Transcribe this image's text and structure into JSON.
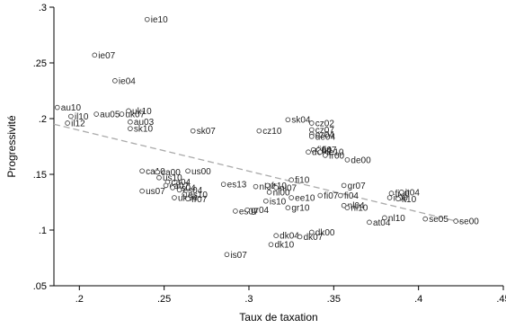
{
  "chart_data": {
    "type": "scatter",
    "title": "",
    "xlabel": "Taux de taxation",
    "ylabel": "Progressivité",
    "xlim": [
      0.185,
      0.45
    ],
    "ylim": [
      0.05,
      0.3
    ],
    "xticks": [
      0.2,
      0.25,
      0.3,
      0.35,
      0.4,
      0.45
    ],
    "xtick_labels": [
      ".2",
      ".25",
      ".3",
      ".35",
      ".4",
      ".45"
    ],
    "yticks": [
      0.05,
      0.1,
      0.15,
      0.2,
      0.25,
      0.3
    ],
    "ytick_labels": [
      ".05",
      ".1",
      ".15",
      ".2",
      ".25",
      ".3"
    ],
    "grid": false,
    "legend": "none",
    "fit_line": {
      "style": "dashed",
      "color": "#aaaaaa",
      "x": [
        0.185,
        0.425
      ],
      "y": [
        0.195,
        0.107
      ]
    },
    "points": [
      {
        "label": "ie10",
        "x": 0.24,
        "y": 0.289
      },
      {
        "label": "ie07",
        "x": 0.209,
        "y": 0.257
      },
      {
        "label": "ie04",
        "x": 0.221,
        "y": 0.234
      },
      {
        "label": "au10",
        "x": 0.187,
        "y": 0.21
      },
      {
        "label": "il10",
        "x": 0.195,
        "y": 0.202
      },
      {
        "label": "il12",
        "x": 0.193,
        "y": 0.196
      },
      {
        "label": "au05",
        "x": 0.21,
        "y": 0.204
      },
      {
        "label": "uk10",
        "x": 0.229,
        "y": 0.207
      },
      {
        "label": "uk07",
        "x": 0.225,
        "y": 0.204
      },
      {
        "label": "au03",
        "x": 0.23,
        "y": 0.197
      },
      {
        "label": "sk10",
        "x": 0.23,
        "y": 0.191
      },
      {
        "label": "sk07",
        "x": 0.267,
        "y": 0.189
      },
      {
        "label": "sk04",
        "x": 0.323,
        "y": 0.199
      },
      {
        "label": "cz02",
        "x": 0.337,
        "y": 0.196
      },
      {
        "label": "cz10",
        "x": 0.306,
        "y": 0.189
      },
      {
        "label": "cz07",
        "x": 0.337,
        "y": 0.19
      },
      {
        "label": "cz04",
        "x": 0.337,
        "y": 0.186
      },
      {
        "label": "de04",
        "x": 0.337,
        "y": 0.184
      },
      {
        "label": "fi04",
        "x": 0.338,
        "y": 0.172
      },
      {
        "label": "fi07",
        "x": 0.341,
        "y": 0.172
      },
      {
        "label": "de07",
        "x": 0.335,
        "y": 0.17
      },
      {
        "label": "de10",
        "x": 0.342,
        "y": 0.17
      },
      {
        "label": "fr00",
        "x": 0.345,
        "y": 0.167
      },
      {
        "label": "de00",
        "x": 0.358,
        "y": 0.163
      },
      {
        "label": "ca10",
        "x": 0.237,
        "y": 0.153
      },
      {
        "label": "ca00",
        "x": 0.246,
        "y": 0.152
      },
      {
        "label": "us00",
        "x": 0.264,
        "y": 0.153
      },
      {
        "label": "us10",
        "x": 0.247,
        "y": 0.147
      },
      {
        "label": "ca04",
        "x": 0.252,
        "y": 0.143
      },
      {
        "label": "ca07",
        "x": 0.251,
        "y": 0.14
      },
      {
        "label": "us04",
        "x": 0.255,
        "y": 0.138
      },
      {
        "label": "es13",
        "x": 0.285,
        "y": 0.141
      },
      {
        "label": "us07",
        "x": 0.237,
        "y": 0.135
      },
      {
        "label": "es04",
        "x": 0.259,
        "y": 0.136
      },
      {
        "label": "es10",
        "x": 0.262,
        "y": 0.132
      },
      {
        "label": "uk04",
        "x": 0.256,
        "y": 0.129
      },
      {
        "label": "fr07",
        "x": 0.264,
        "y": 0.128
      },
      {
        "label": "fi10",
        "x": 0.325,
        "y": 0.145
      },
      {
        "label": "nl04",
        "x": 0.304,
        "y": 0.139
      },
      {
        "label": "fr10",
        "x": 0.311,
        "y": 0.14
      },
      {
        "label": "nl07",
        "x": 0.316,
        "y": 0.138
      },
      {
        "label": "nl00",
        "x": 0.312,
        "y": 0.134
      },
      {
        "label": "gr07",
        "x": 0.356,
        "y": 0.14
      },
      {
        "label": "fi07",
        "x": 0.342,
        "y": 0.131
      },
      {
        "label": "fi04",
        "x": 0.354,
        "y": 0.131
      },
      {
        "label": "ee10",
        "x": 0.325,
        "y": 0.129
      },
      {
        "label": "is10",
        "x": 0.31,
        "y": 0.126
      },
      {
        "label": "gr10",
        "x": 0.323,
        "y": 0.12
      },
      {
        "label": "es07",
        "x": 0.292,
        "y": 0.117
      },
      {
        "label": "gr04",
        "x": 0.299,
        "y": 0.118
      },
      {
        "label": "nl04",
        "x": 0.356,
        "y": 0.122
      },
      {
        "label": "nl10",
        "x": 0.358,
        "y": 0.12
      },
      {
        "label": "fi00",
        "x": 0.384,
        "y": 0.133
      },
      {
        "label": "it04",
        "x": 0.39,
        "y": 0.134
      },
      {
        "label": "it00",
        "x": 0.383,
        "y": 0.129
      },
      {
        "label": "it10",
        "x": 0.388,
        "y": 0.128
      },
      {
        "label": "nl10",
        "x": 0.38,
        "y": 0.111
      },
      {
        "label": "at04",
        "x": 0.371,
        "y": 0.107
      },
      {
        "label": "se05",
        "x": 0.404,
        "y": 0.11
      },
      {
        "label": "se00",
        "x": 0.422,
        "y": 0.108
      },
      {
        "label": "dk04",
        "x": 0.316,
        "y": 0.095
      },
      {
        "label": "dk00",
        "x": 0.337,
        "y": 0.098
      },
      {
        "label": "dk07",
        "x": 0.33,
        "y": 0.094
      },
      {
        "label": "dk10",
        "x": 0.313,
        "y": 0.087
      },
      {
        "label": "is07",
        "x": 0.287,
        "y": 0.078
      }
    ]
  }
}
